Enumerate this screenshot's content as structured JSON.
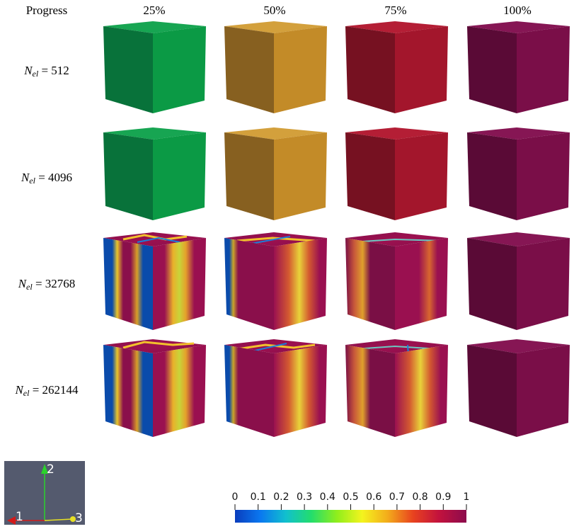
{
  "header": {
    "row_header": "Progress",
    "columns": [
      "25%",
      "50%",
      "75%",
      "100%"
    ]
  },
  "rows": [
    {
      "symbol": "N",
      "subscript": "el",
      "value": "512"
    },
    {
      "symbol": "N",
      "subscript": "el",
      "value": "4096"
    },
    {
      "symbol": "N",
      "subscript": "el",
      "value": "32768"
    },
    {
      "symbol": "N",
      "subscript": "el",
      "value": "262144"
    }
  ],
  "colors": {
    "uniform_25": "#0b9a45",
    "uniform_50": "#c38b28",
    "uniform_75": "#a3162c",
    "uniform_100": "#7a0e48",
    "field_low": "#0a4bab",
    "field_high": "#890f4b"
  },
  "axes_widget": {
    "labels": [
      "1",
      "2",
      "3"
    ],
    "colors": [
      "#d41a1a",
      "#2bd32b",
      "#e7e024"
    ]
  },
  "colorbar": {
    "ticks": [
      "0",
      "0.1",
      "0.2",
      "0.3",
      "0.4",
      "0.5",
      "0.6",
      "0.7",
      "0.8",
      "0.9",
      "1"
    ],
    "stops": [
      "#0a3dbd",
      "#0a78f0",
      "#11c0ce",
      "#23dd6c",
      "#8fee1c",
      "#f4f41e",
      "#f3ab1b",
      "#e8421f",
      "#c3123d",
      "#8c0b4d"
    ]
  }
}
